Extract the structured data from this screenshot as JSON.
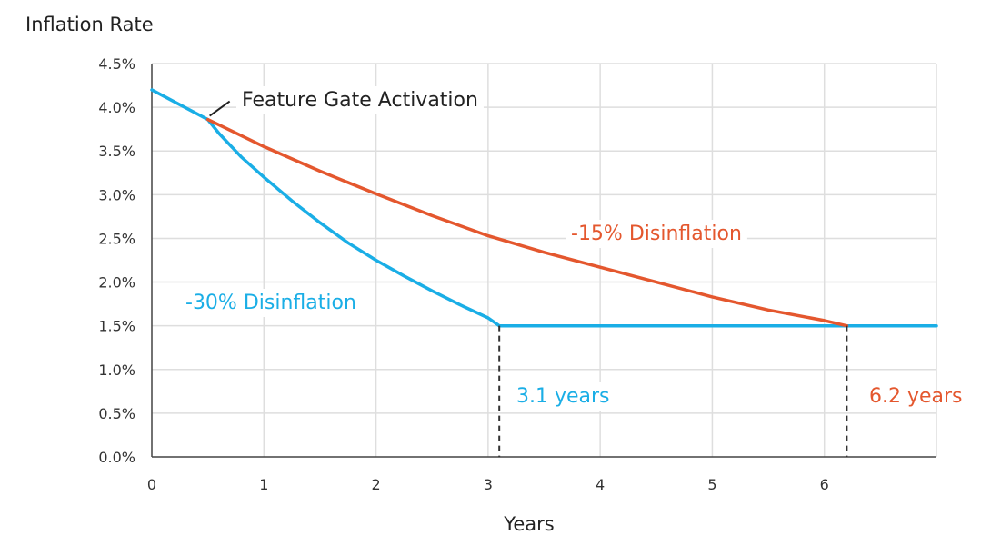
{
  "chart_data": {
    "type": "line",
    "ylabel": "Inflation Rate",
    "xlabel": "Years",
    "xlim": [
      0,
      7
    ],
    "ylim": [
      0,
      4.5
    ],
    "x_ticks": [
      {
        "value": 0,
        "label": "0"
      },
      {
        "value": 1,
        "label": "1"
      },
      {
        "value": 2,
        "label": "2"
      },
      {
        "value": 3,
        "label": "3"
      },
      {
        "value": 4,
        "label": "4"
      },
      {
        "value": 5,
        "label": "5"
      },
      {
        "value": 6,
        "label": "6"
      }
    ],
    "y_ticks": [
      {
        "value": 0,
        "label": "0.0%"
      },
      {
        "value": 0.5,
        "label": "0.5%"
      },
      {
        "value": 1.0,
        "label": "1.0%"
      },
      {
        "value": 1.5,
        "label": "1.5%"
      },
      {
        "value": 2.0,
        "label": "2.0%"
      },
      {
        "value": 2.5,
        "label": "2.5%"
      },
      {
        "value": 3.0,
        "label": "3.0%"
      },
      {
        "value": 3.5,
        "label": "3.5%"
      },
      {
        "value": 4.0,
        "label": "4.0%"
      },
      {
        "value": 4.5,
        "label": "4.5%"
      }
    ],
    "grid": true,
    "series": [
      {
        "name": "-30% Disinflation",
        "color": "#1aaee6",
        "points": [
          [
            0,
            4.2
          ],
          [
            0.5,
            3.86
          ],
          [
            0.6,
            3.7
          ],
          [
            0.8,
            3.43
          ],
          [
            1.0,
            3.2
          ],
          [
            1.25,
            2.93
          ],
          [
            1.5,
            2.68
          ],
          [
            1.75,
            2.45
          ],
          [
            2.0,
            2.25
          ],
          [
            2.25,
            2.07
          ],
          [
            2.5,
            1.9
          ],
          [
            2.75,
            1.74
          ],
          [
            3.0,
            1.59
          ],
          [
            3.1,
            1.5
          ],
          [
            4.0,
            1.5
          ],
          [
            5.0,
            1.5
          ],
          [
            6.0,
            1.5
          ],
          [
            7.0,
            1.5
          ]
        ]
      },
      {
        "name": "-15% Disinflation",
        "color": "#e4572e",
        "points": [
          [
            0.5,
            3.86
          ],
          [
            1.0,
            3.55
          ],
          [
            1.5,
            3.27
          ],
          [
            2.0,
            3.01
          ],
          [
            2.5,
            2.76
          ],
          [
            3.0,
            2.53
          ],
          [
            3.5,
            2.34
          ],
          [
            4.0,
            2.17
          ],
          [
            4.5,
            2.0
          ],
          [
            5.0,
            1.83
          ],
          [
            5.5,
            1.68
          ],
          [
            6.0,
            1.56
          ],
          [
            6.2,
            1.5
          ]
        ]
      }
    ],
    "annotations": [
      {
        "id": "feature-gate",
        "text": "Feature Gate Activation",
        "color": "#222222",
        "x": 0.5,
        "y": 3.86
      },
      {
        "id": "fifteen",
        "text": "-15% Disinflation",
        "color": "#e4572e"
      },
      {
        "id": "thirty",
        "text": "-30% Disinflation",
        "color": "#1aaee6"
      },
      {
        "id": "years-31",
        "text": "3.1 years",
        "color": "#1aaee6",
        "x": 3.1,
        "y": 1.5
      },
      {
        "id": "years-62",
        "text": "6.2 years",
        "color": "#e4572e",
        "x": 6.2,
        "y": 1.5
      }
    ],
    "grid_color": "#dedede",
    "axis_color": "#444444"
  }
}
